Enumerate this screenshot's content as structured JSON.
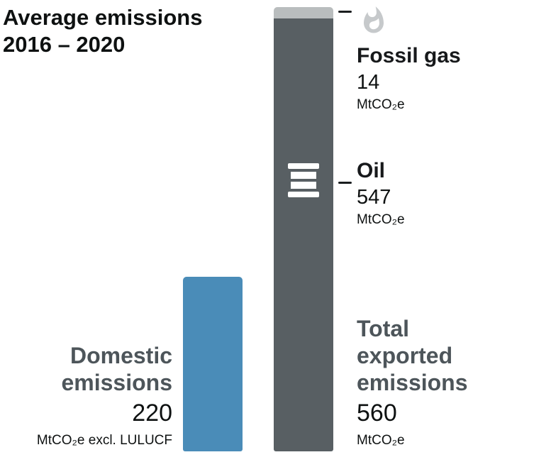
{
  "title": {
    "line1": "Average emissions",
    "line2": "2016 – 2020"
  },
  "fossil_gas": {
    "label": "Fossil gas",
    "value": "14",
    "unit": "MtCO₂e"
  },
  "oil": {
    "label": "Oil",
    "value": "547",
    "unit": "MtCO₂e"
  },
  "exported": {
    "label_line1": "Total",
    "label_line2": "exported",
    "label_line3": "emissions",
    "value": "560",
    "unit": "MtCO₂e"
  },
  "domestic": {
    "label_line1": "Domestic",
    "label_line2": "emissions",
    "value": "220",
    "unit": "MtCO₂e excl. LULUCF"
  },
  "icons": {
    "flame": "flame-icon",
    "barrel": "oil-barrel-icon"
  },
  "colors": {
    "domestic_bar": "#4a8cb8",
    "oil_segment": "#585f63",
    "gas_segment": "#b9bdbe",
    "flame_icon": "#c6c9cb",
    "barrel_icon": "#ffffff",
    "label_gray": "#4d555a",
    "text_black": "#0e1111",
    "tick": "#1a1d1f"
  },
  "chart_data": {
    "type": "bar",
    "title": "Average emissions 2016 – 2020",
    "unit": "MtCO₂e",
    "ylim": [
      0,
      560
    ],
    "axes_hidden": true,
    "legend": "none",
    "categories": [
      "Domestic emissions",
      "Total exported emissions"
    ],
    "totals": [
      220,
      560
    ],
    "bars": [
      {
        "label": "Domestic emissions",
        "value": 220,
        "unit_note": "MtCO₂e excl. LULUCF",
        "color": "#4a8cb8"
      },
      {
        "label": "Total exported emissions",
        "value": 560,
        "color": "#585f63",
        "segments": [
          {
            "label": "Oil",
            "value": 547,
            "color": "#585f63"
          },
          {
            "label": "Fossil gas",
            "value": 14,
            "color": "#b9bdbe"
          }
        ]
      }
    ]
  }
}
